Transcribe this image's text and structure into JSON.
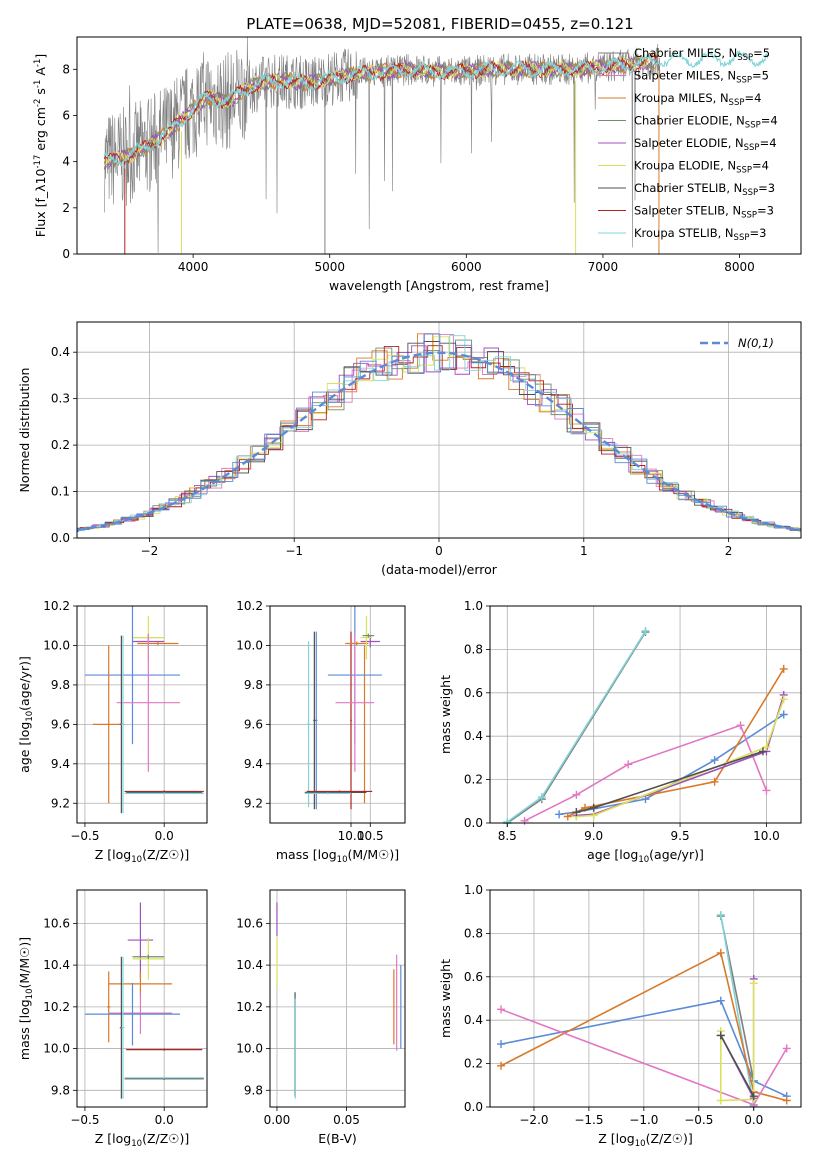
{
  "figure_title": "PLATE=0638, MJD=52081, FIBERID=0455, z=0.121",
  "series_colors": [
    "#7f7f7f",
    "#e377c2",
    "#d97a2a",
    "#6f8f6f",
    "#a04fc0",
    "#dbe15a",
    "#505050",
    "#b22222",
    "#80d4d8"
  ],
  "legend_labels": [
    "Chabrier MILES, N_SSP=5",
    "Salpeter MILES, N_SSP=5",
    "Kroupa MILES, N_SSP=4",
    "Chabrier ELODIE, N_SSP=4",
    "Salpeter ELODIE, N_SSP=4",
    "Kroupa ELODIE, N_SSP=4",
    "Chabrier STELIB, N_SSP=3",
    "Salpeter STELIB, N_SSP=3",
    "Kroupa STELIB, N_SSP=3"
  ],
  "chart_data": [
    {
      "id": "spectrum",
      "type": "line",
      "xlabel": "wavelength [Angstrom, rest frame]",
      "ylabel": "Flux [f_λ10^-17 erg cm^-2 s^-1 A^-1]",
      "xlim": [
        3150,
        8450
      ],
      "ylim": [
        0,
        9.4
      ],
      "xticks": [
        4000,
        5000,
        6000,
        7000,
        8000
      ],
      "yticks": [
        0,
        2,
        4,
        6,
        8
      ],
      "grid": false,
      "legend": "right",
      "continuum": {
        "x": [
          3350,
          3500,
          3650,
          3800,
          3950,
          4100,
          4250,
          4400,
          4550,
          4700,
          4850,
          5000,
          5200,
          5400,
          5600,
          5800,
          6000,
          6200,
          6400,
          6600,
          6800,
          7000,
          7200,
          7400
        ],
        "y": [
          4.0,
          4.2,
          4.6,
          5.2,
          6.0,
          6.8,
          6.6,
          7.2,
          7.5,
          7.5,
          7.4,
          7.6,
          7.8,
          7.9,
          8.0,
          7.9,
          7.9,
          8.0,
          8.0,
          8.0,
          8.0,
          8.1,
          8.2,
          8.4
        ]
      }
    },
    {
      "id": "residuals",
      "type": "step",
      "xlabel": "(data-model)/error",
      "ylabel": "Normed distribution",
      "xlim": [
        -2.5,
        2.5
      ],
      "ylim": [
        0,
        0.465
      ],
      "xticks": [
        -2,
        -1,
        0,
        1,
        2
      ],
      "yticks": [
        0.0,
        0.1,
        0.2,
        0.3,
        0.4
      ],
      "grid": true,
      "legend": "top-right",
      "reference_label": "N(0,1)",
      "reference_color": "#5b8bd6"
    },
    {
      "id": "age_vs_Z",
      "type": "errorbar",
      "xlabel": "Z [log10(Z/Z☉)]",
      "ylabel": "age [log10(age/yr)]",
      "xlim": [
        -0.55,
        0.27
      ],
      "ylim": [
        9.1,
        10.2
      ],
      "xticks": [
        -0.5,
        0.0
      ],
      "yticks": [
        9.2,
        9.4,
        9.6,
        9.8,
        10.0,
        10.2
      ],
      "grid": true,
      "points": [
        {
          "color": "#d97a2a",
          "x": -0.04,
          "xerr": 0.13,
          "y": 10.01,
          "yerr": 0.01
        },
        {
          "color": "#6f8f6f",
          "x": -0.1,
          "xerr": 0.1,
          "y": 10.04,
          "yerr": 0.01
        },
        {
          "color": "#a04fc0",
          "x": -0.1,
          "xerr": 0.1,
          "y": 10.02,
          "yerr": 0.03
        },
        {
          "color": "#dbe15a",
          "x": -0.1,
          "xerr": 0.1,
          "y": 10.04,
          "yerr": 0.11
        },
        {
          "color": "#5b8bd6",
          "x": -0.2,
          "xerr": 0.3,
          "y": 9.85,
          "yerr": 0.35
        },
        {
          "color": "#d97a2a",
          "x": -0.35,
          "xerr": 0.1,
          "y": 9.6,
          "yerr": 0.4
        },
        {
          "color": "#e377c2",
          "x": -0.1,
          "xerr": 0.2,
          "y": 9.71,
          "yerr": 0.35
        },
        {
          "color": "#505050",
          "x": -0.27,
          "xerr": 0.01,
          "y": 9.6,
          "yerr": 0.45
        },
        {
          "color": "#80d4d8",
          "x": -0.26,
          "xerr": 0.01,
          "y": 9.6,
          "yerr": 0.45
        },
        {
          "color": "#b22222",
          "x": 0.0,
          "xerr": 0.25,
          "y": 9.26,
          "yerr": 0.005
        },
        {
          "color": "#505050",
          "x": 0.0,
          "xerr": 0.24,
          "y": 9.255,
          "yerr": 0.005
        },
        {
          "color": "#80d4d8",
          "x": 0.0,
          "xerr": 0.25,
          "y": 9.25,
          "yerr": 0.005
        }
      ]
    },
    {
      "id": "age_vs_mass",
      "type": "errorbar",
      "xlabel": "mass [log10(M/M☉)]",
      "xlim": [
        7.9,
        11.4
      ],
      "ylim": [
        9.1,
        10.2
      ],
      "xticks": [
        10.0,
        10.5
      ],
      "yticks": [
        9.2,
        9.4,
        9.6,
        9.8,
        10.0,
        10.2
      ],
      "grid": true,
      "points": [
        {
          "color": "#5b8bd6",
          "x": 9.1,
          "xerr": 0.03,
          "y": 9.62,
          "yerr": 0.45
        },
        {
          "color": "#505050",
          "x": 9.05,
          "xerr": 0.03,
          "y": 9.62,
          "yerr": 0.45
        },
        {
          "color": "#b22222",
          "x": 10.0,
          "xerr": 0.02,
          "y": 9.62,
          "yerr": 0.45
        },
        {
          "color": "#d97a2a",
          "x": 10.15,
          "xerr": 0.3,
          "y": 10.01,
          "yerr": 0.01
        },
        {
          "color": "#d97a2a",
          "x": 10.35,
          "xerr": 0.02,
          "y": 9.6,
          "yerr": 0.4
        },
        {
          "color": "#5b8bd6",
          "x": 10.1,
          "xerr": 0.7,
          "y": 9.85,
          "yerr": 0.35
        },
        {
          "color": "#e377c2",
          "x": 10.1,
          "xerr": 0.5,
          "y": 9.71,
          "yerr": 0.35
        },
        {
          "color": "#a04fc0",
          "x": 10.5,
          "xerr": 0.25,
          "y": 10.02,
          "yerr": 0.03
        },
        {
          "color": "#dbe15a",
          "x": 10.4,
          "xerr": 0.15,
          "y": 10.04,
          "yerr": 0.11
        },
        {
          "color": "#6f8f6f",
          "x": 10.45,
          "xerr": 0.15,
          "y": 10.05,
          "yerr": 0.01
        },
        {
          "color": "#80d4d8",
          "x": 8.9,
          "xerr": 0.05,
          "y": 9.6,
          "yerr": 0.42
        },
        {
          "color": "#505050",
          "x": 9.6,
          "xerr": 0.8,
          "y": 9.255,
          "yerr": 0.005
        },
        {
          "color": "#b22222",
          "x": 9.7,
          "xerr": 0.85,
          "y": 9.26,
          "yerr": 0.005
        },
        {
          "color": "#80d4d8",
          "x": 9.4,
          "xerr": 0.6,
          "y": 9.25,
          "yerr": 0.005
        }
      ]
    },
    {
      "id": "mass_weight_vs_age",
      "type": "line",
      "xlabel": "age [log10(age/yr)]",
      "ylabel": "mass weight",
      "xlim": [
        8.4,
        10.2
      ],
      "ylim": [
        0,
        1
      ],
      "xticks": [
        8.5,
        9.0,
        9.5,
        10.0
      ],
      "yticks": [
        0.0,
        0.2,
        0.4,
        0.6,
        0.8,
        1.0
      ],
      "grid": true,
      "series": [
        {
          "color": "#7f7f7f",
          "x": [
            8.5,
            8.7,
            9.3
          ],
          "y": [
            0.0,
            0.11,
            0.88
          ]
        },
        {
          "color": "#80d4d8",
          "x": [
            8.5,
            8.7,
            9.3
          ],
          "y": [
            0.005,
            0.12,
            0.885
          ]
        },
        {
          "color": "#5b8bd6",
          "x": [
            8.8,
            8.9,
            9.3,
            9.7,
            10.1
          ],
          "y": [
            0.04,
            0.05,
            0.11,
            0.29,
            0.5
          ]
        },
        {
          "color": "#d97a2a",
          "x": [
            8.85,
            8.95,
            9.7,
            10.1
          ],
          "y": [
            0.03,
            0.07,
            0.19,
            0.71
          ]
        },
        {
          "color": "#e377c2",
          "x": [
            8.6,
            8.9,
            9.2,
            9.85,
            10.0
          ],
          "y": [
            0.01,
            0.13,
            0.27,
            0.45,
            0.15
          ]
        },
        {
          "color": "#a04fc0",
          "x": [
            8.9,
            9.0,
            10.0,
            10.1
          ],
          "y": [
            0.035,
            0.04,
            0.33,
            0.59
          ]
        },
        {
          "color": "#dbe15a",
          "x": [
            8.9,
            9.0,
            10.0,
            10.1
          ],
          "y": [
            0.03,
            0.035,
            0.35,
            0.57
          ]
        },
        {
          "color": "#505050",
          "x": [
            8.9,
            9.0,
            9.98
          ],
          "y": [
            0.05,
            0.07,
            0.33
          ]
        }
      ]
    },
    {
      "id": "mass_vs_Z",
      "type": "errorbar",
      "xlabel": "Z [log10(Z/Z☉)]",
      "ylabel": "mass [log10(M/M☉)]",
      "xlim": [
        -0.55,
        0.27
      ],
      "ylim": [
        9.72,
        10.76
      ],
      "xticks": [
        -0.5,
        0.0
      ],
      "yticks": [
        9.8,
        10.0,
        10.2,
        10.4,
        10.6
      ],
      "grid": true,
      "points": [
        {
          "color": "#a04fc0",
          "x": -0.15,
          "xerr": 0.08,
          "y": 10.52,
          "yerr": 0.18
        },
        {
          "color": "#dbe15a",
          "x": -0.1,
          "xerr": 0.1,
          "y": 10.43,
          "yerr": 0.1
        },
        {
          "color": "#6f8f6f",
          "x": -0.1,
          "xerr": 0.1,
          "y": 10.44,
          "yerr": 0.01
        },
        {
          "color": "#d97a2a",
          "x": -0.15,
          "xerr": 0.2,
          "y": 10.31,
          "yerr": 0.06
        },
        {
          "color": "#d97a2a",
          "x": -0.35,
          "xerr": 0.01,
          "y": 10.2,
          "yerr": 0.17
        },
        {
          "color": "#e377c2",
          "x": -0.15,
          "xerr": 0.2,
          "y": 10.17,
          "yerr": 0.1
        },
        {
          "color": "#5b8bd6",
          "x": -0.2,
          "xerr": 0.3,
          "y": 10.165,
          "yerr": 0.15
        },
        {
          "color": "#505050",
          "x": -0.27,
          "xerr": 0.01,
          "y": 10.1,
          "yerr": 0.34
        },
        {
          "color": "#80d4d8",
          "x": -0.26,
          "xerr": 0.01,
          "y": 10.1,
          "yerr": 0.34
        },
        {
          "color": "#b22222",
          "x": 0.0,
          "xerr": 0.24,
          "y": 9.995,
          "yerr": 0.005
        },
        {
          "color": "#505050",
          "x": 0.0,
          "xerr": 0.25,
          "y": 9.855,
          "yerr": 0.005
        },
        {
          "color": "#80d4d8",
          "x": 0.0,
          "xerr": 0.25,
          "y": 9.86,
          "yerr": 0.005
        }
      ]
    },
    {
      "id": "mass_vs_ebv",
      "type": "errorbar",
      "xlabel": "E(B-V)",
      "xlim": [
        -0.005,
        0.092
      ],
      "ylim": [
        9.72,
        10.76
      ],
      "xticks": [
        0.0,
        0.05
      ],
      "yticks": [
        9.8,
        10.0,
        10.2,
        10.4,
        10.6
      ],
      "grid": true,
      "points": [
        {
          "color": "#a04fc0",
          "x": 0.0,
          "xerr": 0.0002,
          "y": 10.62,
          "yerr": 0.08
        },
        {
          "color": "#dbe15a",
          "x": 0.0,
          "xerr": 0.0002,
          "y": 10.42,
          "yerr": 0.12
        },
        {
          "color": "#505050",
          "x": 0.013,
          "xerr": 0.0002,
          "y": 10.02,
          "yerr": 0.25
        },
        {
          "color": "#80d4d8",
          "x": 0.0132,
          "xerr": 0.0002,
          "y": 10.0,
          "yerr": 0.24
        },
        {
          "color": "#d97a2a",
          "x": 0.084,
          "xerr": 0.0002,
          "y": 10.2,
          "yerr": 0.18
        },
        {
          "color": "#e377c2",
          "x": 0.086,
          "xerr": 0.0002,
          "y": 10.22,
          "yerr": 0.23
        },
        {
          "color": "#5b8bd6",
          "x": 0.089,
          "xerr": 0.0002,
          "y": 10.2,
          "yerr": 0.2
        }
      ]
    },
    {
      "id": "mass_weight_vs_Z",
      "type": "line",
      "xlabel": "Z [log10(Z/Z☉)]",
      "ylabel": "mass weight",
      "xlim": [
        -2.4,
        0.43
      ],
      "ylim": [
        0,
        1
      ],
      "xticks": [
        -2.0,
        -1.5,
        -1.0,
        -0.5,
        0.0
      ],
      "yticks": [
        0.0,
        0.2,
        0.4,
        0.6,
        0.8,
        1.0
      ],
      "grid": true,
      "series": [
        {
          "color": "#7f7f7f",
          "x": [
            -0.3,
            0.0
          ],
          "y": [
            0.88,
            0.12
          ]
        },
        {
          "color": "#80d4d8",
          "x": [
            -0.3,
            0.0
          ],
          "y": [
            0.885,
            0.005
          ]
        },
        {
          "color": "#5b8bd6",
          "x": [
            -2.3,
            -0.3,
            0.0,
            0.3
          ],
          "y": [
            0.29,
            0.49,
            0.12,
            0.05
          ]
        },
        {
          "color": "#d97a2a",
          "x": [
            -2.3,
            -0.3,
            0.0,
            0.3
          ],
          "y": [
            0.19,
            0.71,
            0.07,
            0.03
          ]
        },
        {
          "color": "#e377c2",
          "x": [
            -2.3,
            0.0,
            0.3
          ],
          "y": [
            0.45,
            0.01,
            0.27
          ]
        },
        {
          "color": "#a04fc0",
          "x": [
            -0.3,
            0.0,
            0.0
          ],
          "y": [
            0.33,
            0.04,
            0.59
          ]
        },
        {
          "color": "#dbe15a",
          "x": [
            -0.3,
            -0.3,
            0.0,
            0.0
          ],
          "y": [
            0.35,
            0.03,
            0.035,
            0.57
          ]
        },
        {
          "color": "#505050",
          "x": [
            -0.3,
            0.0
          ],
          "y": [
            0.33,
            0.05
          ]
        }
      ]
    }
  ]
}
